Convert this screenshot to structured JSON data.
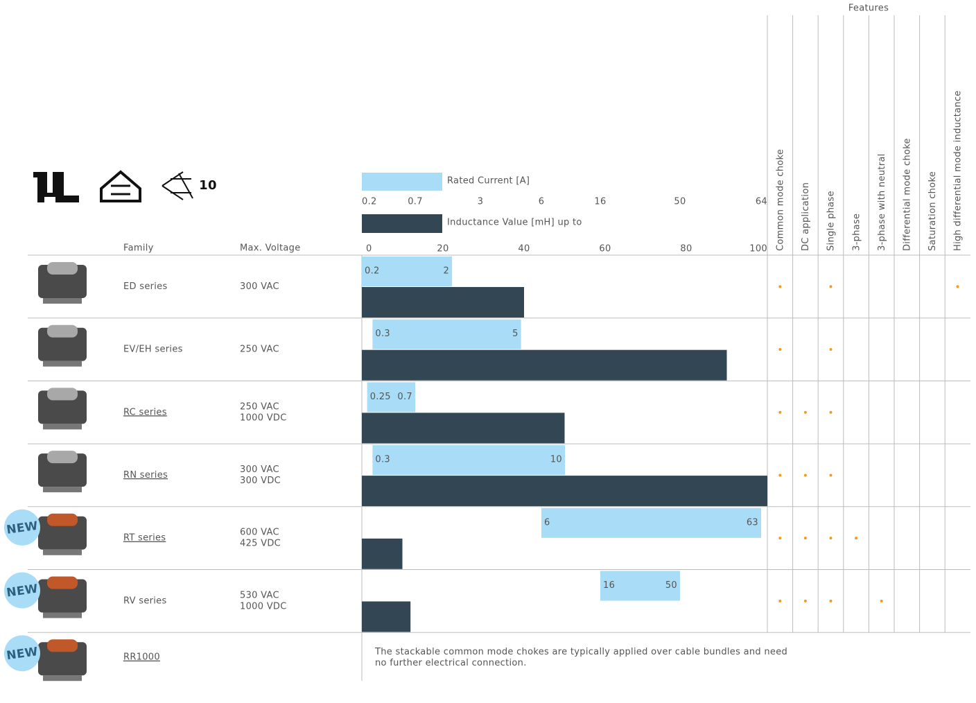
{
  "header": {
    "features_title": "Features",
    "family_label": "Family",
    "voltage_label": "Max. Voltage",
    "cert_logo_text": "10",
    "features": [
      "Common mode choke",
      "DC application",
      "Single phase",
      "3-phase",
      "3-phase with neutral",
      "Differential mode choke",
      "Saturation choke",
      "High differential mode inductance"
    ]
  },
  "chart_data": {
    "type": "bar",
    "current_legend": "Rated Current [A]",
    "current_color": "#a8dcf7",
    "current_ticks": [
      0.2,
      0.7,
      3,
      6,
      16,
      50,
      64
    ],
    "inductance_legend": "Inductance Value [mH] up to",
    "inductance_color": "#334654",
    "inductance_lim": [
      0,
      100
    ],
    "inductance_ticks": [
      0,
      20,
      40,
      60,
      80,
      100
    ]
  },
  "badge": "NEW",
  "rows": [
    {
      "family": "ED series",
      "link": false,
      "new": false,
      "voltage": [
        "300 VAC"
      ],
      "current": [
        0.2,
        2
      ],
      "inductance": 40,
      "features": [
        true,
        false,
        true,
        false,
        false,
        false,
        false,
        true
      ]
    },
    {
      "family": "EV/EH series",
      "link": false,
      "new": false,
      "voltage": [
        "250 VAC"
      ],
      "current": [
        0.3,
        5
      ],
      "inductance": 90,
      "features": [
        true,
        false,
        true,
        false,
        false,
        false,
        false,
        false
      ]
    },
    {
      "family": "RC series",
      "link": true,
      "new": false,
      "voltage": [
        "250 VAC",
        "1000 VDC"
      ],
      "current": [
        0.25,
        0.7
      ],
      "inductance": 50,
      "features": [
        true,
        true,
        true,
        false,
        false,
        false,
        false,
        false
      ]
    },
    {
      "family": "RN series",
      "link": true,
      "new": false,
      "voltage": [
        "300 VAC",
        "300 VDC"
      ],
      "current": [
        0.3,
        10
      ],
      "inductance": 100,
      "features": [
        true,
        true,
        true,
        false,
        false,
        false,
        false,
        false
      ]
    },
    {
      "family": "RT series",
      "link": true,
      "new": true,
      "voltage": [
        "600 VAC",
        "425 VDC"
      ],
      "current": [
        6,
        63
      ],
      "inductance": 10,
      "features": [
        true,
        true,
        true,
        true,
        false,
        false,
        false,
        false
      ]
    },
    {
      "family": "RV series",
      "link": false,
      "new": true,
      "voltage": [
        "530 VAC",
        "1000 VDC"
      ],
      "current": [
        16,
        50
      ],
      "inductance": 12,
      "features": [
        true,
        true,
        true,
        false,
        true,
        false,
        false,
        false
      ]
    },
    {
      "family": "RR1000",
      "link": true,
      "new": true,
      "voltage": [],
      "description": "The stackable common mode chokes are typically applied over cable bundles and need no further electrical connection.",
      "features": [
        false,
        false,
        false,
        false,
        false,
        false,
        false,
        false
      ]
    }
  ]
}
